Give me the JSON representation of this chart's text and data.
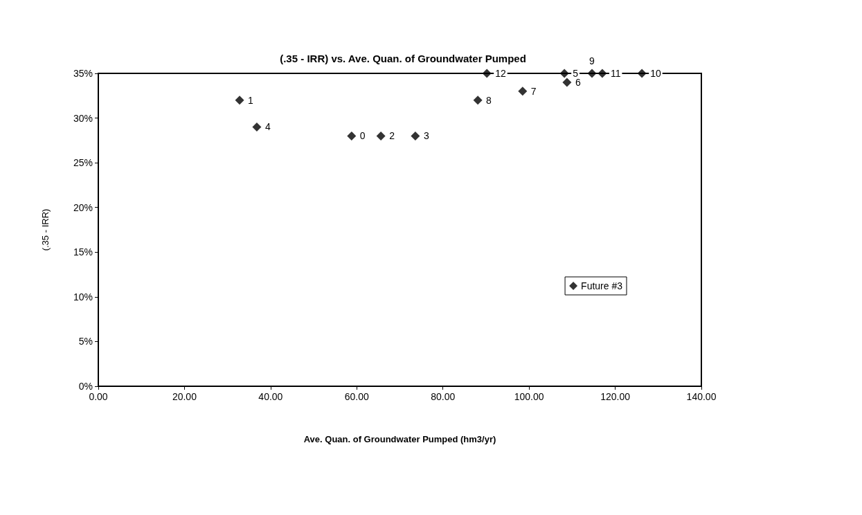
{
  "chart_data": {
    "type": "scatter",
    "title": "(.35 - IRR) vs. Ave. Quan. of Groundwater Pumped",
    "xlabel": "Ave. Quan. of Groundwater Pumped (hm3/yr)",
    "ylabel": "(.35 - IRR)",
    "x": [
      58.8,
      32.8,
      65.6,
      73.6,
      36.8,
      108.2,
      108.8,
      98.5,
      88.1,
      114.6,
      126.2,
      117.0,
      90.2
    ],
    "series": [
      {
        "name": "Future #3",
        "color": "#000000",
        "values": [
          28,
          32,
          28,
          28,
          29,
          35,
          34,
          33,
          32,
          35,
          35,
          35,
          35
        ]
      }
    ],
    "annotations": [
      {
        "text": "0",
        "x": 58.8,
        "y": 28
      },
      {
        "text": "1",
        "x": 32.8,
        "y": 32
      },
      {
        "text": "2",
        "x": 65.6,
        "y": 28
      },
      {
        "text": "3",
        "x": 73.6,
        "y": 28
      },
      {
        "text": "4",
        "x": 36.8,
        "y": 29
      },
      {
        "text": "5",
        "x": 108.2,
        "y": 35
      },
      {
        "text": "6",
        "x": 108.8,
        "y": 34
      },
      {
        "text": "7",
        "x": 98.5,
        "y": 33
      },
      {
        "text": "8",
        "x": 88.1,
        "y": 32
      },
      {
        "text": "9",
        "x": 114.6,
        "y": 35
      },
      {
        "text": "10",
        "x": 126.2,
        "y": 35
      },
      {
        "text": "11",
        "x": 117.0,
        "y": 35
      },
      {
        "text": "12",
        "x": 90.2,
        "y": 35
      }
    ],
    "xlim": [
      0,
      140
    ],
    "xticks": [
      {
        "value": 0,
        "label": "0.00"
      },
      {
        "value": 20,
        "label": "20.00"
      },
      {
        "value": 40,
        "label": "40.00"
      },
      {
        "value": 60,
        "label": "60.00"
      },
      {
        "value": 80,
        "label": "80.00"
      },
      {
        "value": 100,
        "label": "100.00"
      },
      {
        "value": 120,
        "label": "120.00"
      },
      {
        "value": 140,
        "label": "140.00"
      }
    ],
    "ylim": [
      0,
      35
    ],
    "yticks": [
      {
        "value": 0,
        "label": "0%"
      },
      {
        "value": 5,
        "label": "5%"
      },
      {
        "value": 10,
        "label": "10%"
      },
      {
        "value": 15,
        "label": "15%"
      },
      {
        "value": 20,
        "label": "20%"
      },
      {
        "value": 25,
        "label": "25%"
      },
      {
        "value": 30,
        "label": "30%"
      },
      {
        "value": 35,
        "label": "35%"
      }
    ],
    "grid": false,
    "legend": "right",
    "marker": "diamond"
  }
}
